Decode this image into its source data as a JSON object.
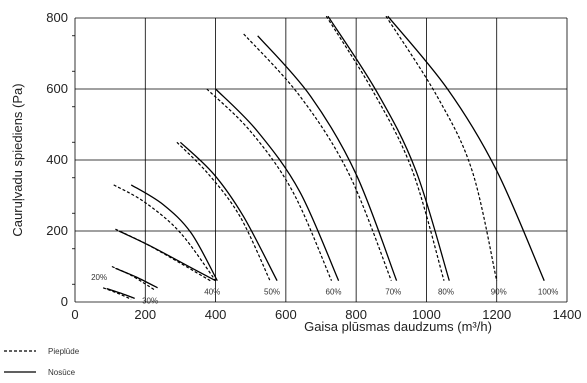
{
  "chart_data": {
    "type": "line",
    "xlabel": "Gaisa plūsmas daudzums (m³/h)",
    "ylabel": "Cauruļvadu spiediens (Pa)",
    "xlim": [
      0,
      1400
    ],
    "ylim": [
      0,
      800
    ],
    "xticks": [
      "0",
      "200",
      "400",
      "600",
      "800",
      "1000",
      "1200",
      "1400"
    ],
    "yticks": [
      "0",
      "200",
      "400",
      "600",
      "800"
    ],
    "grid": true,
    "legend": {
      "placement": "bottom-left",
      "entries": [
        "Pieplūde",
        "Nosūce"
      ]
    },
    "series": [
      {
        "name": "Pieplūde",
        "style": "dashed",
        "curves": [
          {
            "label": "20%",
            "x": [
              80,
              120,
              160
            ],
            "y": [
              40,
              25,
              8
            ]
          },
          {
            "label": "30%",
            "x": [
              105,
              160,
              225
            ],
            "y": [
              100,
              75,
              35
            ]
          },
          {
            "label": "40%",
            "x": [
              115,
              200,
              290,
              385
            ],
            "y": [
              205,
              165,
              115,
              60
            ]
          },
          {
            "label": "",
            "x": [
              110,
              200,
              300,
              400
            ],
            "y": [
              330,
              280,
              195,
              60
            ]
          },
          {
            "label": "50%",
            "x": [
              290,
              380,
              470,
              555
            ],
            "y": [
              450,
              360,
              240,
              60
            ]
          },
          {
            "label": "60%",
            "x": [
              375,
              500,
              620,
              730
            ],
            "y": [
              600,
              480,
              310,
              60
            ]
          },
          {
            "label": "70%",
            "x": [
              480,
              640,
              780,
              900
            ],
            "y": [
              755,
              580,
              360,
              60
            ]
          },
          {
            "label": "80%",
            "x": [
              715,
              850,
              960,
              1050
            ],
            "y": [
              805,
              590,
              370,
              60
            ]
          },
          {
            "label": "90%",
            "x": [
              885,
              1030,
              1130,
              1200
            ],
            "y": [
              805,
              580,
              370,
              60
            ]
          }
        ]
      },
      {
        "name": "Nosūce",
        "style": "solid",
        "curves": [
          {
            "label": "",
            "x": [
              90,
              130,
              170
            ],
            "y": [
              38,
              25,
              10
            ]
          },
          {
            "label": "",
            "x": [
              115,
              175,
              235
            ],
            "y": [
              95,
              70,
              40
            ]
          },
          {
            "label": "",
            "x": [
              125,
              210,
              305,
              400
            ],
            "y": [
              200,
              160,
              110,
              60
            ]
          },
          {
            "label": "",
            "x": [
              160,
              250,
              330,
              405
            ],
            "y": [
              330,
              275,
              195,
              60
            ]
          },
          {
            "label": "",
            "x": [
              300,
              395,
              480,
              575
            ],
            "y": [
              450,
              360,
              240,
              60
            ]
          },
          {
            "label": "",
            "x": [
              400,
              520,
              640,
              750
            ],
            "y": [
              600,
              480,
              310,
              60
            ]
          },
          {
            "label": "",
            "x": [
              520,
              670,
              800,
              915
            ],
            "y": [
              750,
              580,
              360,
              60
            ]
          },
          {
            "label": "",
            "x": [
              720,
              860,
              970,
              1065
            ],
            "y": [
              805,
              590,
              370,
              60
            ]
          },
          {
            "label": "100%",
            "x": [
              890,
              1060,
              1200,
              1335
            ],
            "y": [
              805,
              600,
              370,
              60
            ]
          }
        ]
      }
    ]
  }
}
